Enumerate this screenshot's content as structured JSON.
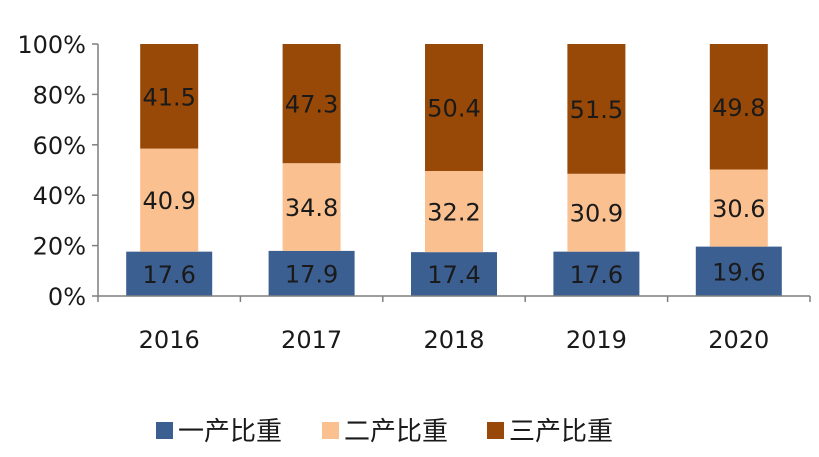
{
  "chart_data": {
    "type": "bar",
    "stacked": true,
    "categories": [
      "2016",
      "2017",
      "2018",
      "2019",
      "2020"
    ],
    "series": [
      {
        "name": "一产比重",
        "color": "#3c5f91",
        "values": [
          17.6,
          17.9,
          17.4,
          17.6,
          19.6
        ]
      },
      {
        "name": "二产比重",
        "color": "#fac090",
        "values": [
          40.9,
          34.8,
          32.2,
          30.9,
          30.6
        ]
      },
      {
        "name": "三产比重",
        "color": "#984807",
        "values": [
          41.5,
          47.3,
          50.4,
          51.5,
          49.8
        ]
      }
    ],
    "yticks": [
      "0%",
      "20%",
      "40%",
      "60%",
      "80%",
      "100%"
    ],
    "ylim": [
      0,
      100
    ],
    "legend_position": "bottom",
    "grid": false,
    "note": "一产比重 bars drawn wider than other segments"
  }
}
